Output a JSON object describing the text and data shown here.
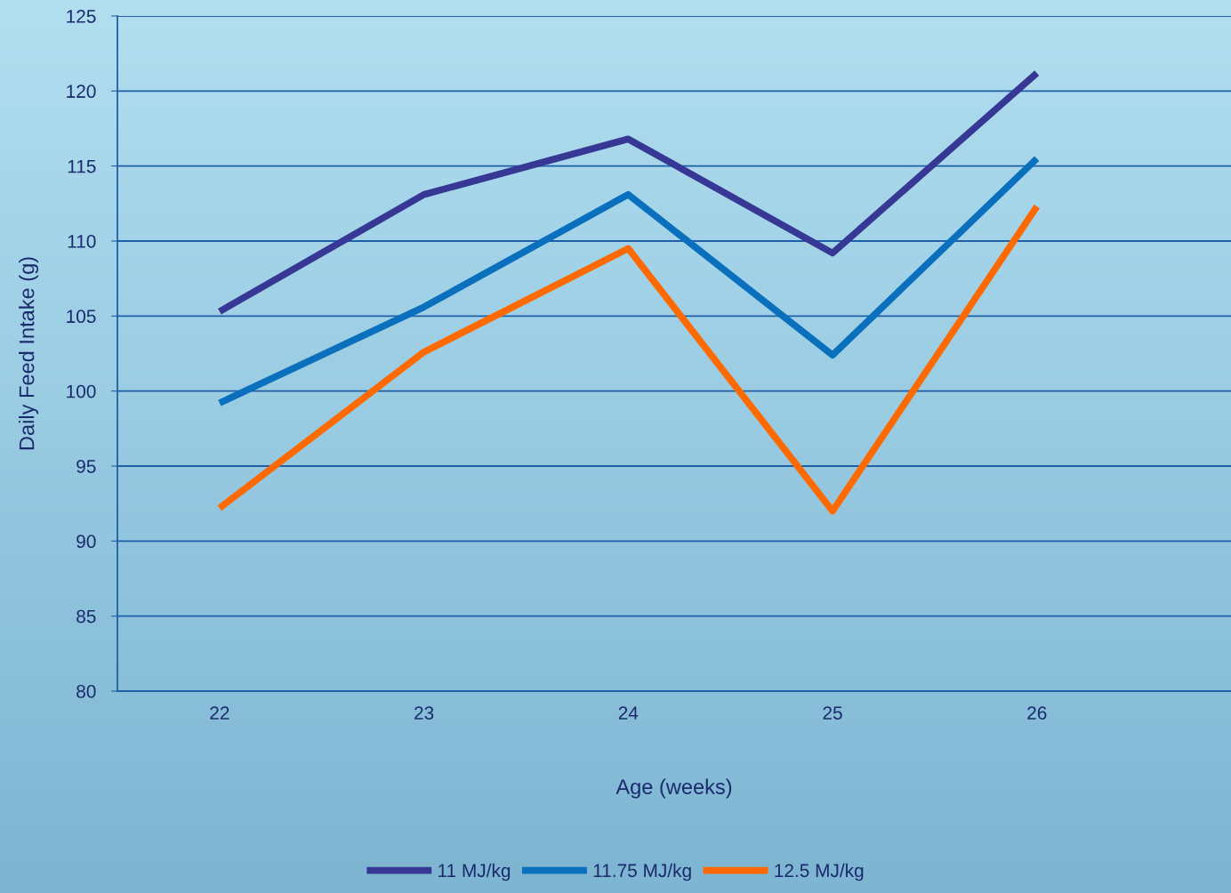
{
  "chart_data": {
    "type": "line",
    "xlabel": "Age (weeks)",
    "ylabel": "Daily Feed Intake (g)",
    "categories": [
      "22",
      "23",
      "24",
      "25",
      "26"
    ],
    "series": [
      {
        "name": "11 MJ/kg",
        "color": "#373895",
        "values": [
          105.3,
          113.1,
          116.8,
          109.2,
          121.2
        ]
      },
      {
        "name": "11.75 MJ/kg",
        "color": "#0a70bd",
        "values": [
          99.2,
          105.6,
          113.1,
          102.4,
          115.5
        ]
      },
      {
        "name": "12.5 MJ/kg",
        "color": "#ff6a00",
        "values": [
          92.2,
          102.6,
          109.5,
          92.0,
          112.3
        ]
      }
    ],
    "ylim": [
      80,
      125
    ],
    "yticks": [
      80,
      85,
      90,
      95,
      100,
      105,
      110,
      115,
      120,
      125
    ],
    "grid": "y",
    "legend": "bottom",
    "marker": "none",
    "line_style": "solid"
  }
}
